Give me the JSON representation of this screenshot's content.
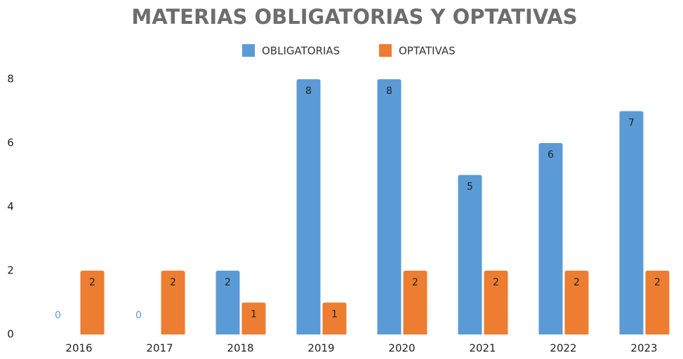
{
  "chart_data": {
    "type": "bar",
    "title": "MATERIAS OBLIGATORIAS Y OPTATIVAS",
    "categories": [
      "2016",
      "2017",
      "2018",
      "2019",
      "2020",
      "2021",
      "2022",
      "2023"
    ],
    "series": [
      {
        "name": "OBLIGATORIAS",
        "color": "#5b9bd5",
        "values": [
          0,
          0,
          2,
          8,
          8,
          5,
          6,
          7
        ]
      },
      {
        "name": "OPTATIVAS",
        "color": "#ed7d31",
        "values": [
          2,
          2,
          1,
          1,
          2,
          2,
          2,
          2
        ]
      }
    ],
    "ylim": [
      0,
      8
    ],
    "yticks": [
      0,
      2,
      4,
      6,
      8
    ],
    "grid": false,
    "legend": "top"
  }
}
